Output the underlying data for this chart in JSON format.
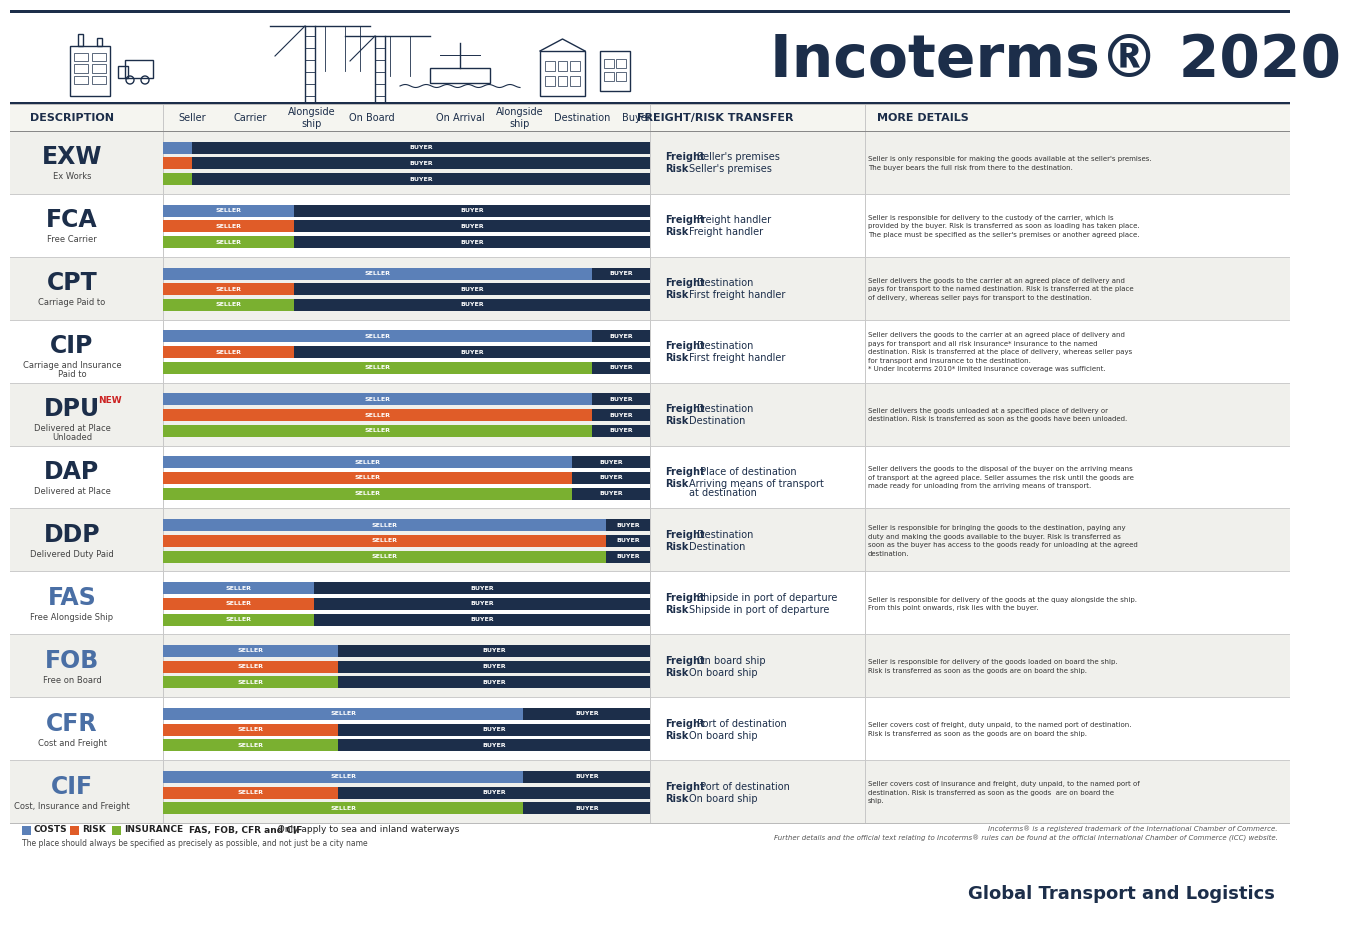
{
  "title": "Incoterms® 2020",
  "subtitle": "Global Transport and Logistics",
  "bg_color": "#ffffff",
  "dark_navy": "#1c2e4a",
  "bar_colors": {
    "costs": "#5b80b8",
    "risk": "#e05c28",
    "insurance": "#7ab030"
  },
  "terms": [
    {
      "code": "EXW",
      "name": "Ex Works",
      "color": "#1c2e4a",
      "sea_only": false,
      "is_new": false,
      "bars": {
        "costs": {
          "seller": 0.06,
          "buyer": 0.94
        },
        "risk": {
          "seller": 0.06,
          "buyer": 0.94
        },
        "insurance": {
          "seller": 0.06,
          "buyer": 0.94
        }
      },
      "freight_bold": "Freight",
      "freight_rest": "Seller's premises",
      "risk_bold": "Risk",
      "risk_rest": "Seller's premises",
      "detail": [
        "Seller is only responsible for making the goods available at the seller's premises.",
        "The buyer bears the full risk from there to the destination."
      ]
    },
    {
      "code": "FCA",
      "name": "Free Carrier",
      "color": "#1c2e4a",
      "sea_only": false,
      "is_new": false,
      "bars": {
        "costs": {
          "seller": 0.27,
          "buyer": 0.73
        },
        "risk": {
          "seller": 0.27,
          "buyer": 0.73
        },
        "insurance": {
          "seller": 0.27,
          "buyer": 0.73
        }
      },
      "freight_bold": "Freight",
      "freight_rest": "Freight handler",
      "risk_bold": "Risk",
      "risk_rest": "Freight handler",
      "detail": [
        "Seller is responsible for delivery to the custody of the carrier, which is",
        "provided by the buyer. Risk is transferred as soon as loading has taken place.",
        "The place must be specified as the seller's premises or another agreed place."
      ]
    },
    {
      "code": "CPT",
      "name": "Carriage Paid to",
      "color": "#1c2e4a",
      "sea_only": false,
      "is_new": false,
      "bars": {
        "costs": {
          "seller": 0.88,
          "buyer": 0.12
        },
        "risk": {
          "seller": 0.27,
          "buyer": 0.73
        },
        "insurance": {
          "seller": 0.27,
          "buyer": 0.73
        }
      },
      "freight_bold": "Freight",
      "freight_rest": "Destination",
      "risk_bold": "Risk",
      "risk_rest": "First freight handler",
      "detail": [
        "Seller delivers the goods to the carrier at an agreed place of delivery and",
        "pays for transport to the named destination. Risk is transferred at the place",
        "of delivery, whereas seller pays for transport to the destination."
      ]
    },
    {
      "code": "CIP",
      "name": "Carriage and Insurance\nPaid to",
      "color": "#1c2e4a",
      "sea_only": false,
      "is_new": false,
      "bars": {
        "costs": {
          "seller": 0.88,
          "buyer": 0.12
        },
        "risk": {
          "seller": 0.27,
          "buyer": 0.73
        },
        "insurance": {
          "seller": 0.88,
          "buyer": 0.12
        }
      },
      "freight_bold": "Freight",
      "freight_rest": "Destination",
      "risk_bold": "Risk",
      "risk_rest": "First freight handler",
      "detail": [
        "Seller delivers the goods to the carrier at an agreed place of delivery and",
        "pays for transport and all risk insurance* insurance to the named",
        "destination. Risk is transferred at the place of delivery, whereas seller pays",
        "for transport and insurance to the destination.",
        "* Under Incoterms 2010* limited insurance coverage was sufficient."
      ]
    },
    {
      "code": "DPU",
      "name": "Delivered at Place\nUnloaded",
      "color": "#1c2e4a",
      "sea_only": false,
      "is_new": true,
      "bars": {
        "costs": {
          "seller": 0.88,
          "buyer": 0.12
        },
        "risk": {
          "seller": 0.88,
          "buyer": 0.12
        },
        "insurance": {
          "seller": 0.88,
          "buyer": 0.12
        }
      },
      "freight_bold": "Freight",
      "freight_rest": "Destination",
      "risk_bold": "Risk",
      "risk_rest": "Destination",
      "detail": [
        "Seller delivers the goods unloaded at a specified place of delivery or",
        "destination. Risk is transferred as soon as the goods have been unloaded."
      ]
    },
    {
      "code": "DAP",
      "name": "Delivered at Place",
      "color": "#1c2e4a",
      "sea_only": false,
      "is_new": false,
      "bars": {
        "costs": {
          "seller": 0.84,
          "buyer": 0.16
        },
        "risk": {
          "seller": 0.84,
          "buyer": 0.16
        },
        "insurance": {
          "seller": 0.84,
          "buyer": 0.16
        }
      },
      "freight_bold": "Freight",
      "freight_rest": " Place of destination",
      "risk_bold": "Risk",
      "risk_rest": "Arriving means of transport\nat destination",
      "detail": [
        "Seller delivers the goods to the disposal of the buyer on the arriving means",
        "of transport at the agreed place. Seller assumes the risk until the goods are",
        "made ready for unloading from the arriving means of transport."
      ]
    },
    {
      "code": "DDP",
      "name": "Delivered Duty Paid",
      "color": "#1c2e4a",
      "sea_only": false,
      "is_new": false,
      "bars": {
        "costs": {
          "seller": 0.91,
          "buyer": 0.09
        },
        "risk": {
          "seller": 0.91,
          "buyer": 0.09
        },
        "insurance": {
          "seller": 0.91,
          "buyer": 0.09
        }
      },
      "freight_bold": "Freight",
      "freight_rest": "Destination",
      "risk_bold": "Risk",
      "risk_rest": "Destination",
      "detail": [
        "Seller is responsible for bringing the goods to the destination, paying any",
        "duty and making the goods available to the buyer. Risk is transferred as",
        "soon as the buyer has access to the goods ready for unloading at the agreed",
        "destination."
      ]
    },
    {
      "code": "FAS",
      "name": "Free Alongside Ship",
      "color": "#4a6fa5",
      "sea_only": true,
      "is_new": false,
      "bars": {
        "costs": {
          "seller": 0.31,
          "buyer": 0.69
        },
        "risk": {
          "seller": 0.31,
          "buyer": 0.69
        },
        "insurance": {
          "seller": 0.31,
          "buyer": 0.69
        }
      },
      "freight_bold": "Freight",
      "freight_rest": "Shipside in port of departure",
      "risk_bold": "Risk",
      "risk_rest": "Shipside in port of departure",
      "detail": [
        "Seller is responsible for delivery of the goods at the quay alongside the ship.",
        "From this point onwards, risk lies with the buyer."
      ]
    },
    {
      "code": "FOB",
      "name": "Free on Board",
      "color": "#4a6fa5",
      "sea_only": true,
      "is_new": false,
      "bars": {
        "costs": {
          "seller": 0.36,
          "buyer": 0.64
        },
        "risk": {
          "seller": 0.36,
          "buyer": 0.64
        },
        "insurance": {
          "seller": 0.36,
          "buyer": 0.64
        }
      },
      "freight_bold": "Freight",
      "freight_rest": "On board ship",
      "risk_bold": "Risk",
      "risk_rest": "On board ship",
      "detail": [
        "Seller is responsible for delivery of the goods loaded on board the ship.",
        "Risk is transferred as soon as the goods are on board the ship."
      ]
    },
    {
      "code": "CFR",
      "name": "Cost and Freight",
      "color": "#4a6fa5",
      "sea_only": true,
      "is_new": false,
      "bars": {
        "costs": {
          "seller": 0.74,
          "buyer": 0.26
        },
        "risk": {
          "seller": 0.36,
          "buyer": 0.64
        },
        "insurance": {
          "seller": 0.36,
          "buyer": 0.64
        }
      },
      "freight_bold": "Freight",
      "freight_rest": "Port of destination",
      "risk_bold": "Risk",
      "risk_rest": "On board ship",
      "detail": [
        "Seller covers cost of freight, duty unpaid, to the named port of destination.",
        "Risk is transferred as soon as the goods are on board the ship."
      ]
    },
    {
      "code": "CIF",
      "name": "Cost, Insurance and Freight",
      "color": "#4a6fa5",
      "sea_only": true,
      "is_new": false,
      "bars": {
        "costs": {
          "seller": 0.74,
          "buyer": 0.26
        },
        "risk": {
          "seller": 0.36,
          "buyer": 0.64
        },
        "insurance": {
          "seller": 0.74,
          "buyer": 0.26
        }
      },
      "freight_bold": "Freight",
      "freight_rest": " Port of destination",
      "risk_bold": "Risk",
      "risk_rest": "On board ship",
      "detail": [
        "Seller covers cost of insurance and freight, duty unpaid, to the named port of",
        "destination. Risk is transferred as soon as the goods  are on board the",
        "ship."
      ]
    }
  ],
  "footnote1_bold": "FAS, FOB, CFR and CIF",
  "footnote1_rest": "  Only apply to sea and inland waterways",
  "footnote2": "The place should always be specified as precisely as possible, and not just be a city name",
  "trademark_line1": "Incoterms® is a registered trademark of the International Chamber of Commerce.",
  "trademark_line2": "Further details and the official text relating to Incoterms® rules can be found at the official International Chamber of Commerce (ICC) website."
}
